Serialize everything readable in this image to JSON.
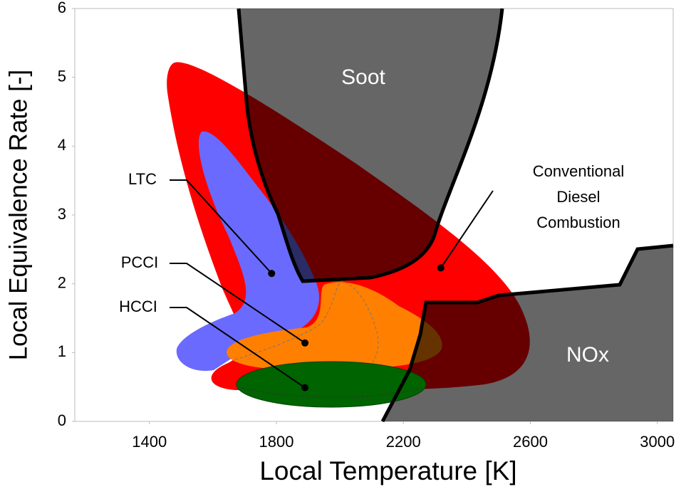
{
  "chart_data": {
    "type": "region-map",
    "xlabel": "Local Temperature [K]",
    "ylabel": "Local Equivalence Rate [-]",
    "xlim": [
      1165,
      3050
    ],
    "xticks": [
      1400,
      1800,
      2200,
      2600,
      3000
    ],
    "ylim": [
      0,
      6
    ],
    "yticks": [
      0,
      1,
      2,
      3,
      4,
      5,
      6
    ],
    "regions": [
      "Soot",
      "NOx"
    ],
    "points": [
      {
        "label": [
          "LTC"
        ],
        "x": 1785,
        "y": 2.15
      },
      {
        "label": [
          "PCCI"
        ],
        "x": 1890,
        "y": 1.14
      },
      {
        "label": [
          "HCCI"
        ],
        "x": 1890,
        "y": 0.49
      },
      {
        "label": [
          "Conventional",
          "Diesel",
          "Combustion"
        ],
        "x": 2318,
        "y": 2.23
      }
    ]
  }
}
